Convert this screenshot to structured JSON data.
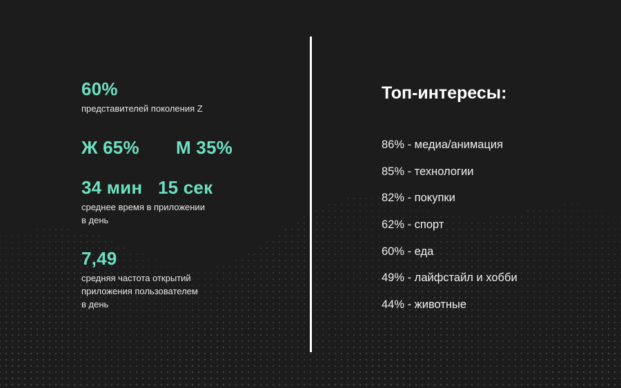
{
  "colors": {
    "background": "#1c1c1c",
    "accent": "#6de0c2",
    "text": "#f0f0f0",
    "divider": "#ffffff"
  },
  "left": {
    "stat1": {
      "value": "60%",
      "caption": "представителей поколения Z"
    },
    "gender": {
      "female": "Ж 65%",
      "male": "М 35%"
    },
    "time": {
      "minutes": "34 мин",
      "seconds": "15 сек",
      "caption_line1": "среднее время в приложении",
      "caption_line2": "в день"
    },
    "frequency": {
      "value": "7,49",
      "caption_line1": "средняя частота открытий",
      "caption_line2": "приложения пользователем",
      "caption_line3": "в день"
    }
  },
  "right": {
    "title": "Топ-интересы:",
    "items": [
      "86% - медиа/анимация",
      "85% - технологии",
      "82% - покупки",
      "62% - спорт",
      "60% - еда",
      "49% - лайфстайл и хобби",
      "44% - животные"
    ]
  }
}
